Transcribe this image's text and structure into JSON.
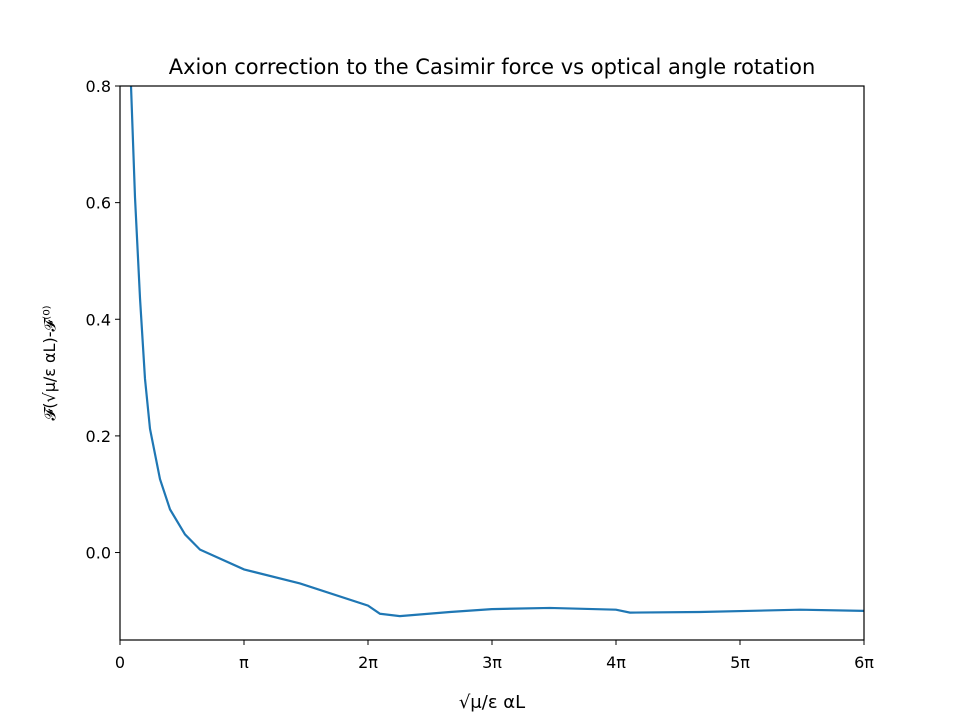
{
  "chart_data": {
    "type": "line",
    "title": "Axion correction to the Casimir force vs optical angle rotation",
    "x_label": "√μ/ε αL",
    "y_label": "𝓕(√μ/ε αL)-𝓕⁽⁰⁾",
    "x": [
      0.279,
      0.38,
      0.507,
      0.633,
      0.76,
      1.013,
      1.267,
      1.647,
      2.027,
      3.142,
      4.56,
      6.283,
      6.587,
      7.09,
      8.36,
      9.42,
      10.89,
      12.566,
      12.92,
      14.69,
      17.23,
      18.85
    ],
    "series": [
      {
        "color": "#1f77b4",
        "values": [
          0.8,
          0.609,
          0.436,
          0.298,
          0.212,
          0.126,
          0.074,
          0.031,
          0.005,
          -0.029,
          -0.053,
          -0.091,
          -0.105,
          -0.109,
          -0.102,
          -0.097,
          -0.095,
          -0.098,
          -0.103,
          -0.102,
          -0.098,
          -0.1
        ]
      }
    ],
    "xlim": [
      0,
      18.8496
    ],
    "ylim": [
      -0.15,
      0.8
    ],
    "xticks": [
      0,
      {
        "value": 3.14159,
        "label": "π"
      },
      {
        "value": 6.28319,
        "label": "2π"
      },
      {
        "value": 9.42478,
        "label": "3π"
      },
      {
        "value": 12.56637,
        "label": "4π"
      },
      {
        "value": 15.70796,
        "label": "5π"
      },
      {
        "value": 18.84956,
        "label": "6π"
      }
    ],
    "yticks": [
      {
        "value": 0,
        "label": "0.0"
      },
      0.2,
      0.4,
      0.6,
      0.8
    ],
    "grid": false
  }
}
